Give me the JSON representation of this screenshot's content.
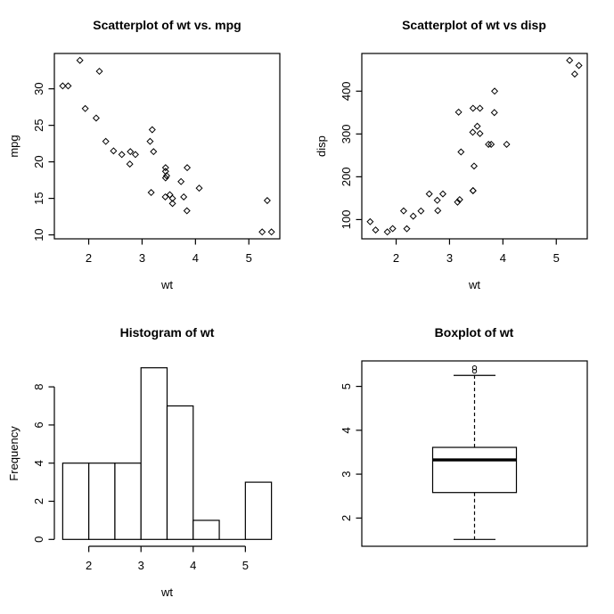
{
  "figure": {
    "description": "R graphics device, 2x2 plot grid of mtcars data",
    "colors": {
      "foreground": "#000000",
      "background": "#ffffff"
    }
  },
  "chart_data": [
    {
      "id": "scatter-wt-mpg",
      "type": "scatter",
      "title": "Scatterplot of wt vs. mpg",
      "xlabel": "wt",
      "ylabel": "mpg",
      "xlim": [
        1.3566,
        5.5804
      ],
      "ylim": [
        9.46,
        34.84
      ],
      "xticks": [
        2,
        3,
        4,
        5
      ],
      "yticks": [
        10,
        15,
        20,
        25,
        30
      ],
      "marker": "open-diamond",
      "points": [
        [
          2.62,
          21.0
        ],
        [
          2.875,
          21.0
        ],
        [
          2.32,
          22.8
        ],
        [
          3.215,
          21.4
        ],
        [
          3.44,
          18.7
        ],
        [
          3.46,
          18.1
        ],
        [
          3.57,
          14.3
        ],
        [
          3.19,
          24.4
        ],
        [
          3.15,
          22.8
        ],
        [
          3.44,
          19.2
        ],
        [
          3.44,
          17.8
        ],
        [
          4.07,
          16.4
        ],
        [
          3.73,
          17.3
        ],
        [
          3.78,
          15.2
        ],
        [
          5.25,
          10.4
        ],
        [
          5.424,
          10.4
        ],
        [
          5.345,
          14.7
        ],
        [
          2.2,
          32.4
        ],
        [
          1.615,
          30.4
        ],
        [
          1.835,
          33.9
        ],
        [
          2.465,
          21.5
        ],
        [
          3.52,
          15.5
        ],
        [
          3.435,
          15.2
        ],
        [
          3.84,
          13.3
        ],
        [
          3.845,
          19.2
        ],
        [
          1.935,
          27.3
        ],
        [
          2.14,
          26.0
        ],
        [
          1.513,
          30.4
        ],
        [
          3.17,
          15.8
        ],
        [
          2.77,
          19.7
        ],
        [
          3.57,
          15.0
        ],
        [
          2.78,
          21.4
        ]
      ]
    },
    {
      "id": "scatter-wt-disp",
      "type": "scatter",
      "title": "Scatterplot of wt vs disp",
      "xlabel": "wt",
      "ylabel": "disp",
      "xlim": [
        1.3566,
        5.5804
      ],
      "ylim": [
        55.064,
        488.036
      ],
      "xticks": [
        2,
        3,
        4,
        5
      ],
      "yticks": [
        100,
        200,
        300,
        400
      ],
      "marker": "open-diamond",
      "points": [
        [
          2.62,
          160
        ],
        [
          2.875,
          160
        ],
        [
          2.32,
          108
        ],
        [
          3.215,
          258
        ],
        [
          3.44,
          360
        ],
        [
          3.46,
          225
        ],
        [
          3.57,
          360
        ],
        [
          3.19,
          146.7
        ],
        [
          3.15,
          140.8
        ],
        [
          3.44,
          167.6
        ],
        [
          3.44,
          167.6
        ],
        [
          4.07,
          275.8
        ],
        [
          3.73,
          275.8
        ],
        [
          3.78,
          275.8
        ],
        [
          5.25,
          472
        ],
        [
          5.424,
          460
        ],
        [
          5.345,
          440
        ],
        [
          2.2,
          78.7
        ],
        [
          1.615,
          75.7
        ],
        [
          1.835,
          71.1
        ],
        [
          2.465,
          120.1
        ],
        [
          3.52,
          318
        ],
        [
          3.435,
          304
        ],
        [
          3.84,
          350
        ],
        [
          3.845,
          400
        ],
        [
          1.935,
          79
        ],
        [
          2.14,
          120.3
        ],
        [
          1.513,
          95.1
        ],
        [
          3.17,
          351
        ],
        [
          2.77,
          145
        ],
        [
          3.57,
          301
        ],
        [
          2.78,
          121
        ]
      ]
    },
    {
      "id": "hist-wt",
      "type": "bar",
      "title": "Histogram of wt",
      "xlabel": "wt",
      "ylabel": "Frequency",
      "breaks": [
        1.5,
        2,
        2.5,
        3,
        3.5,
        4,
        4.5,
        5,
        5.5
      ],
      "counts": [
        4,
        4,
        4,
        9,
        7,
        1,
        0,
        3
      ],
      "xlim": [
        1.34,
        5.66
      ],
      "ylim": [
        -0.36,
        9.36
      ],
      "xticks": [
        2,
        3,
        4,
        5
      ],
      "yticks": [
        0,
        2,
        4,
        6,
        8
      ]
    },
    {
      "id": "boxplot-wt",
      "type": "boxplot",
      "title": "Boxplot of wt",
      "xlabel": "",
      "ylabel": "",
      "ylim": [
        1.3566,
        5.5804
      ],
      "yticks": [
        2,
        3,
        4,
        5
      ],
      "stats": {
        "whisker_low": 1.513,
        "q1": 2.581,
        "median": 3.325,
        "q3": 3.61,
        "whisker_high": 5.25
      },
      "outliers": [
        5.345,
        5.424
      ]
    }
  ]
}
